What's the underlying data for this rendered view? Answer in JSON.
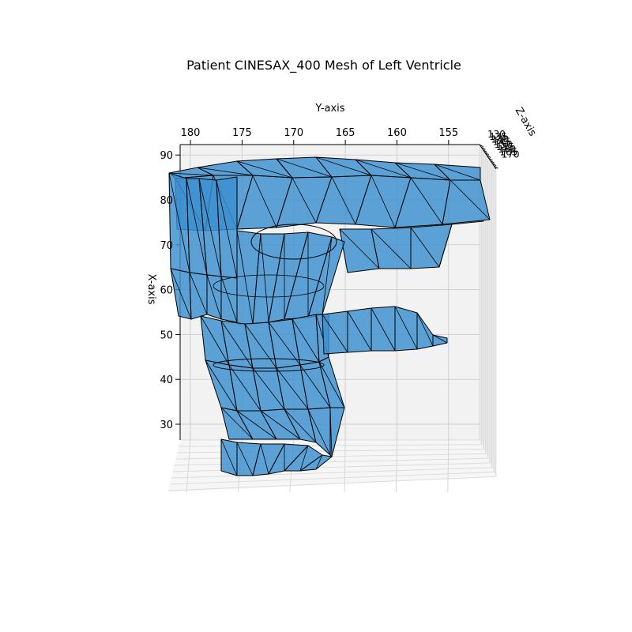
{
  "chart_data": {
    "type": "surface-3d",
    "title": "Patient CINESAX_400 Mesh of Left Ventricle",
    "xlabel": "X-axis",
    "ylabel": "Y-axis",
    "zlabel": "Z-axis",
    "x_ticks": [
      30,
      40,
      50,
      60,
      70,
      80,
      90
    ],
    "y_ticks": [
      180,
      175,
      170,
      165,
      160,
      155
    ],
    "z_ticks": [
      130,
      135,
      140,
      145,
      150,
      155,
      160,
      165,
      170
    ],
    "x_range": [
      25,
      92
    ],
    "y_range": [
      181,
      152
    ],
    "grid": true,
    "mesh_color": "#3a8fd0",
    "edge_color": "#000000",
    "pane_color": "#f2f2f2"
  }
}
